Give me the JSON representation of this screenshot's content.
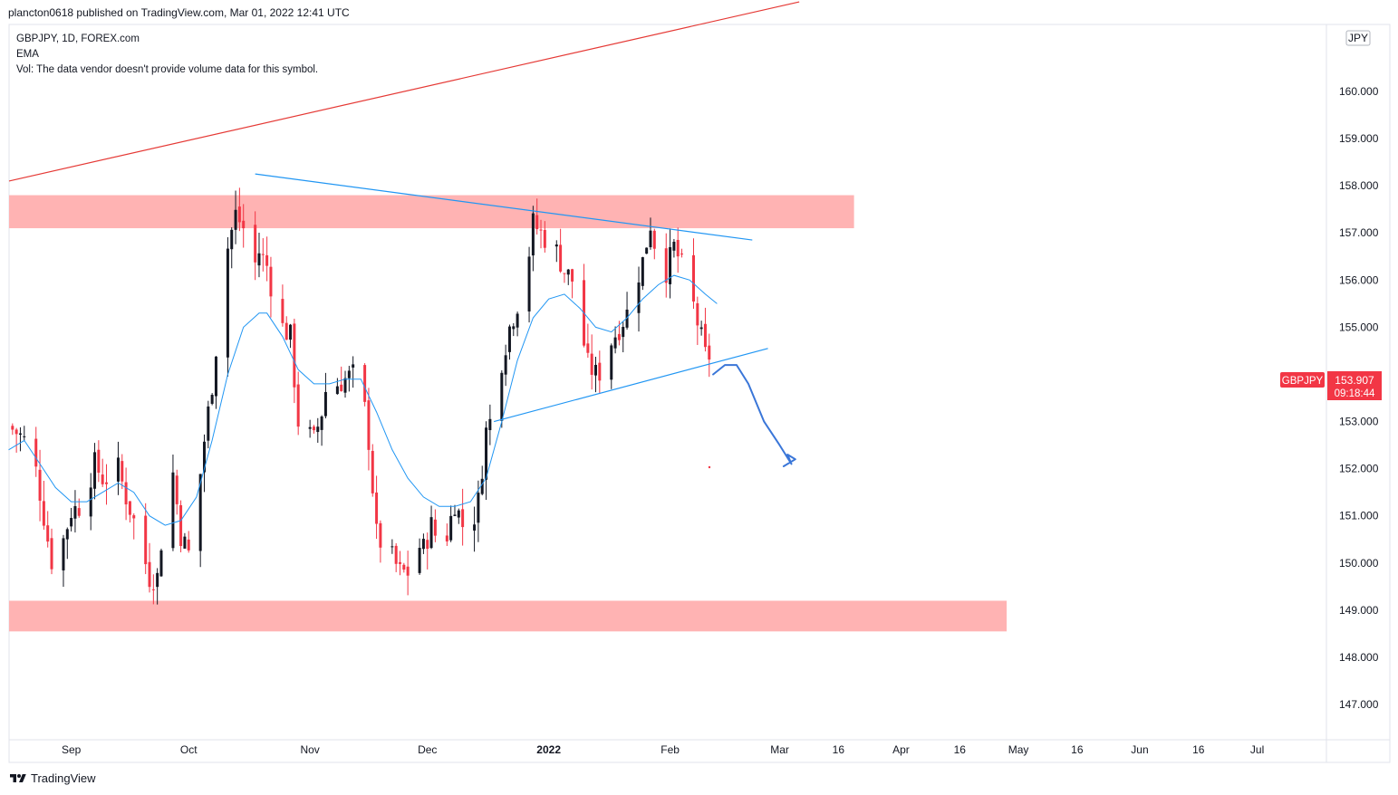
{
  "publish_line": "plancton0618 published on TradingView.com, Mar 01, 2022 12:41 UTC",
  "legend": {
    "symbol_line": "GBPJPY, 1D, FOREX.com",
    "indicator": "EMA",
    "volume_note": "Vol: The data vendor doesn't provide volume data for this symbol."
  },
  "currency_badge": "JPY",
  "price_tag": {
    "symbol": "GBPJPY",
    "price": "153.907",
    "countdown": "09:18:44",
    "color": "#f23645"
  },
  "footer": {
    "brand": "TradingView"
  },
  "colors": {
    "up": "#131722",
    "down": "#f23645",
    "ema": "#2196f3",
    "zone": "#ffb3b3",
    "red_line": "#e53935",
    "trend_line": "#2196f3",
    "drawing": "#3a76d8"
  },
  "chart_data": {
    "type": "candlestick",
    "title": "GBPJPY, 1D, FOREX.com",
    "y_axis": {
      "range": [
        146.3,
        161.5
      ],
      "ticks": [
        "147.000",
        "148.000",
        "149.000",
        "150.000",
        "151.000",
        "152.000",
        "153.000",
        "155.000",
        "156.000",
        "157.000",
        "158.000",
        "159.000",
        "160.000"
      ]
    },
    "x_axis": {
      "ticks": [
        {
          "label": "Sep",
          "day": 16
        },
        {
          "label": "Oct",
          "day": 46
        },
        {
          "label": "Nov",
          "day": 77
        },
        {
          "label": "Dec",
          "day": 107
        },
        {
          "label": "2022",
          "day": 138,
          "bold": true
        },
        {
          "label": "Feb",
          "day": 169
        },
        {
          "label": "Mar",
          "day": 197
        },
        {
          "label": "16",
          "day": 212
        },
        {
          "label": "Apr",
          "day": 228
        },
        {
          "label": "16",
          "day": 243
        },
        {
          "label": "May",
          "day": 258
        },
        {
          "label": "16",
          "day": 273
        },
        {
          "label": "Jun",
          "day": 289
        },
        {
          "label": "16",
          "day": 304
        },
        {
          "label": "Jul",
          "day": 319
        }
      ]
    },
    "close_path": [
      [
        0,
        152.9
      ],
      [
        3,
        152.7
      ],
      [
        6,
        152.4
      ],
      [
        8,
        151.5
      ],
      [
        10,
        150.5
      ],
      [
        12,
        149.6
      ],
      [
        14,
        150.5
      ],
      [
        16,
        151.1
      ],
      [
        18,
        151.2
      ],
      [
        20,
        151.6
      ],
      [
        22,
        152.1
      ],
      [
        24,
        151.8
      ],
      [
        26,
        151.8
      ],
      [
        28,
        152.0
      ],
      [
        30,
        151.4
      ],
      [
        32,
        150.9
      ],
      [
        34,
        150.3
      ],
      [
        36,
        149.7
      ],
      [
        38,
        149.7
      ],
      [
        40,
        151.2
      ],
      [
        42,
        151.9
      ],
      [
        44,
        150.6
      ],
      [
        46,
        150.2
      ],
      [
        48,
        151.2
      ],
      [
        50,
        152.6
      ],
      [
        52,
        153.8
      ],
      [
        54,
        155.3
      ],
      [
        56,
        156.7
      ],
      [
        58,
        157.4
      ],
      [
        60,
        157.1
      ],
      [
        62,
        156.1
      ],
      [
        64,
        156.6
      ],
      [
        66,
        156.3
      ],
      [
        68,
        155.5
      ],
      [
        70,
        155.0
      ],
      [
        72,
        154.8
      ],
      [
        74,
        153.0
      ],
      [
        76,
        152.8
      ],
      [
        78,
        152.6
      ],
      [
        80,
        153.2
      ],
      [
        82,
        154.1
      ],
      [
        84,
        153.8
      ],
      [
        86,
        153.9
      ],
      [
        88,
        154.0
      ],
      [
        90,
        153.9
      ],
      [
        92,
        152.6
      ],
      [
        94,
        150.6
      ],
      [
        96,
        150.3
      ],
      [
        98,
        150.1
      ],
      [
        100,
        149.8
      ],
      [
        102,
        149.8
      ],
      [
        104,
        150.4
      ],
      [
        106,
        150.3
      ],
      [
        108,
        150.8
      ],
      [
        110,
        150.4
      ],
      [
        112,
        150.6
      ],
      [
        114,
        151.3
      ],
      [
        116,
        150.8
      ],
      [
        118,
        150.7
      ],
      [
        120,
        151.3
      ],
      [
        122,
        152.8
      ],
      [
        124,
        153.2
      ],
      [
        126,
        154.3
      ],
      [
        128,
        155.0
      ],
      [
        130,
        155.5
      ],
      [
        132,
        156.0
      ],
      [
        134,
        157.2
      ],
      [
        136,
        157.0
      ],
      [
        138,
        156.8
      ],
      [
        140,
        156.6
      ],
      [
        142,
        156.2
      ],
      [
        144,
        156.0
      ],
      [
        146,
        155.1
      ],
      [
        148,
        154.2
      ],
      [
        150,
        154.0
      ],
      [
        152,
        154.1
      ],
      [
        154,
        154.7
      ],
      [
        156,
        155.0
      ],
      [
        158,
        155.3
      ],
      [
        160,
        155.9
      ],
      [
        162,
        156.4
      ],
      [
        164,
        157.2
      ],
      [
        166,
        156.4
      ],
      [
        168,
        156.2
      ],
      [
        170,
        156.7
      ],
      [
        172,
        156.3
      ],
      [
        174,
        155.8
      ],
      [
        176,
        155.1
      ],
      [
        178,
        154.4
      ],
      [
        180,
        154.4
      ],
      [
        181,
        153.9
      ]
    ],
    "ema_path": [
      [
        0,
        152.4
      ],
      [
        4,
        152.6
      ],
      [
        8,
        152.1
      ],
      [
        12,
        151.6
      ],
      [
        16,
        151.3
      ],
      [
        20,
        151.3
      ],
      [
        24,
        151.5
      ],
      [
        28,
        151.7
      ],
      [
        32,
        151.5
      ],
      [
        36,
        151.0
      ],
      [
        40,
        150.8
      ],
      [
        44,
        150.9
      ],
      [
        48,
        151.4
      ],
      [
        52,
        152.6
      ],
      [
        56,
        154.0
      ],
      [
        60,
        155.0
      ],
      [
        64,
        155.3
      ],
      [
        66,
        155.3
      ],
      [
        70,
        154.8
      ],
      [
        74,
        154.1
      ],
      [
        78,
        153.8
      ],
      [
        82,
        153.8
      ],
      [
        86,
        153.9
      ],
      [
        90,
        153.9
      ],
      [
        94,
        153.2
      ],
      [
        98,
        152.4
      ],
      [
        102,
        151.8
      ],
      [
        106,
        151.4
      ],
      [
        110,
        151.2
      ],
      [
        114,
        151.2
      ],
      [
        118,
        151.3
      ],
      [
        122,
        151.8
      ],
      [
        126,
        153.0
      ],
      [
        130,
        154.3
      ],
      [
        134,
        155.2
      ],
      [
        138,
        155.6
      ],
      [
        142,
        155.7
      ],
      [
        146,
        155.4
      ],
      [
        150,
        155.0
      ],
      [
        154,
        154.9
      ],
      [
        158,
        155.2
      ],
      [
        162,
        155.6
      ],
      [
        166,
        155.9
      ],
      [
        170,
        156.1
      ],
      [
        174,
        156.0
      ],
      [
        178,
        155.7
      ],
      [
        181,
        155.5
      ]
    ],
    "zones": [
      {
        "y_low": 157.1,
        "y_high": 157.8,
        "day_start": -2,
        "day_end": 216
      },
      {
        "y_low": 148.55,
        "y_high": 149.2,
        "day_start": -2,
        "day_end": 255
      }
    ],
    "lines": [
      {
        "name": "upper-channel",
        "from": [
          -2,
          158.1
        ],
        "to": [
          202,
          161.9
        ]
      },
      {
        "name": "descending-resistance",
        "from": [
          63,
          158.25
        ],
        "to": [
          190,
          156.85
        ]
      },
      {
        "name": "ascending-support",
        "from": [
          124,
          153.0
        ],
        "to": [
          194,
          154.55
        ]
      }
    ],
    "projection": [
      [
        180,
        154.0
      ],
      [
        183,
        154.2
      ],
      [
        186,
        154.2
      ],
      [
        189,
        153.8
      ],
      [
        193,
        153.0
      ],
      [
        197,
        152.5
      ],
      [
        200,
        152.1
      ],
      [
        199,
        152.3
      ],
      [
        201,
        152.2
      ],
      [
        198,
        152.05
      ]
    ]
  }
}
